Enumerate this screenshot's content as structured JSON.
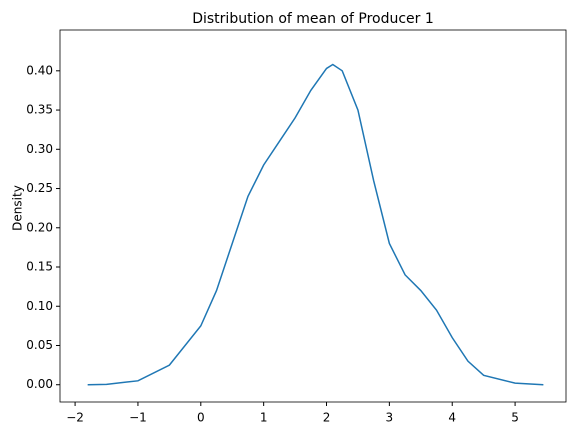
{
  "chart_data": {
    "type": "line",
    "title": "Distribution of mean of Producer 1",
    "ylabel": "Density",
    "x": [
      -1.8,
      -1.5,
      -1,
      -0.5,
      0,
      0.25,
      0.5,
      0.75,
      1,
      1.25,
      1.5,
      1.75,
      2,
      2.1,
      2.25,
      2.5,
      2.75,
      3,
      3.25,
      3.5,
      3.75,
      4,
      4.25,
      4.5,
      5,
      5.45
    ],
    "series": [
      {
        "color": "#1f77b4",
        "values": [
          0,
          0.0005,
          0.005,
          0.025,
          0.075,
          0.12,
          0.18,
          0.24,
          0.28,
          0.31,
          0.34,
          0.375,
          0.403,
          0.408,
          0.4,
          0.35,
          0.26,
          0.18,
          0.14,
          0.12,
          0.095,
          0.06,
          0.03,
          0.012,
          0.002,
          0
        ]
      }
    ],
    "xlim": [
      -2.24,
      5.81
    ],
    "ylim": [
      -0.022,
      0.452
    ],
    "xticks": [
      {
        "value": -2,
        "label": "−2"
      },
      {
        "value": -1,
        "label": "−1"
      },
      0,
      1,
      2,
      3,
      4,
      5
    ],
    "yticks": [
      {
        "value": 0,
        "label": "0.00"
      },
      0.05,
      {
        "value": 0.1,
        "label": "0.10"
      },
      0.15,
      {
        "value": 0.2,
        "label": "0.20"
      },
      0.25,
      {
        "value": 0.3,
        "label": "0.30"
      },
      0.35,
      {
        "value": 0.4,
        "label": "0.40"
      }
    ]
  }
}
